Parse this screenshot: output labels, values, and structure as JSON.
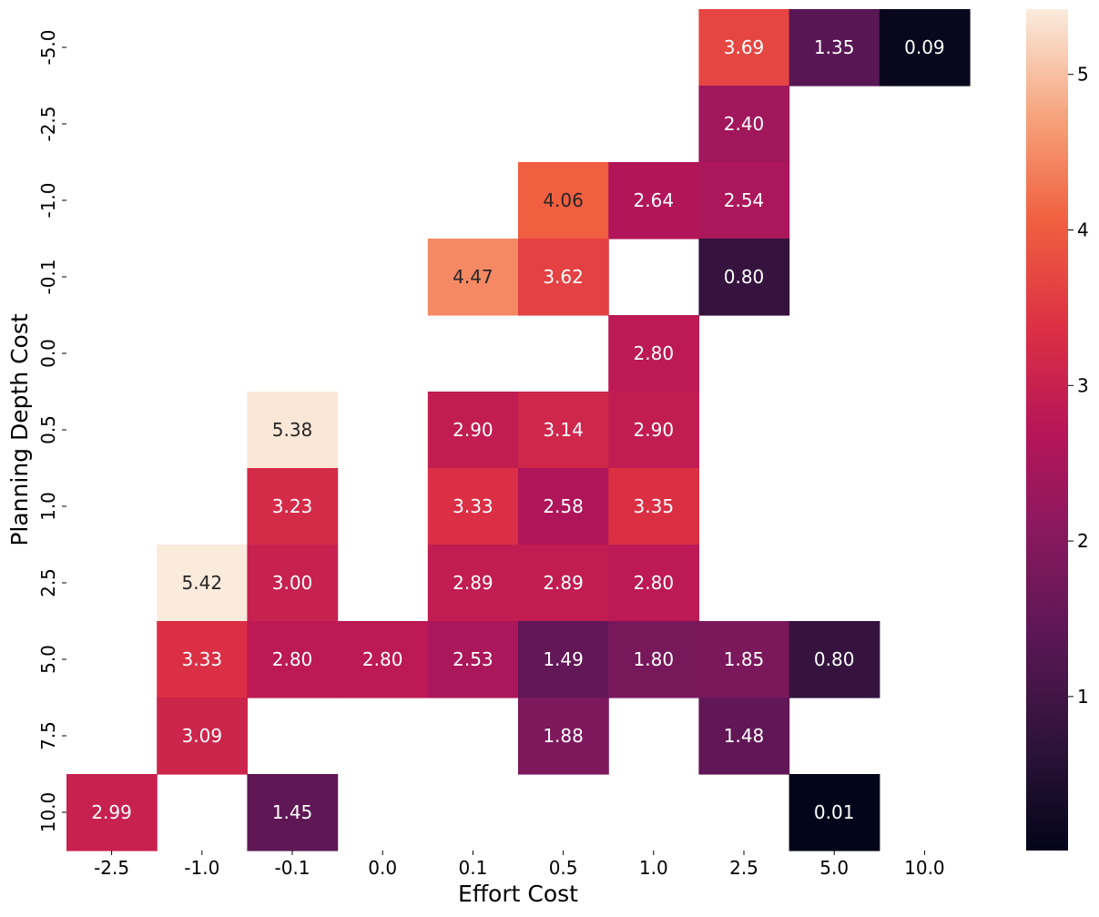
{
  "chart_data": {
    "type": "heatmap",
    "title": "",
    "xlabel": "Effort Cost",
    "ylabel": "Planning Depth Cost",
    "x_categories": [
      "-2.5",
      "-1.0",
      "-0.1",
      "0.0",
      "0.1",
      "0.5",
      "1.0",
      "2.5",
      "5.0",
      "10.0"
    ],
    "y_categories": [
      "-5.0",
      "-2.5",
      "-1.0",
      "-0.1",
      "0.0",
      "0.5",
      "1.0",
      "2.5",
      "5.0",
      "7.5",
      "10.0"
    ],
    "values": [
      [
        null,
        null,
        null,
        null,
        null,
        null,
        null,
        3.69,
        1.35,
        0.09
      ],
      [
        null,
        null,
        null,
        null,
        null,
        null,
        null,
        2.4,
        null,
        null
      ],
      [
        null,
        null,
        null,
        null,
        null,
        4.06,
        2.64,
        2.54,
        null,
        null
      ],
      [
        null,
        null,
        null,
        null,
        4.47,
        3.62,
        null,
        0.8,
        null,
        null
      ],
      [
        null,
        null,
        null,
        null,
        null,
        null,
        2.8,
        null,
        null,
        null
      ],
      [
        null,
        null,
        5.38,
        null,
        2.9,
        3.14,
        2.9,
        null,
        null,
        null
      ],
      [
        null,
        null,
        3.23,
        null,
        3.33,
        2.58,
        3.35,
        null,
        null,
        null
      ],
      [
        null,
        5.42,
        3.0,
        null,
        2.89,
        2.89,
        2.8,
        null,
        null,
        null
      ],
      [
        null,
        3.33,
        2.8,
        2.8,
        2.53,
        1.49,
        1.8,
        1.85,
        0.8,
        null
      ],
      [
        null,
        3.09,
        null,
        null,
        null,
        1.88,
        null,
        1.48,
        null,
        null
      ],
      [
        2.99,
        null,
        1.45,
        null,
        null,
        null,
        null,
        null,
        0.01,
        null
      ]
    ],
    "cell_labels": [
      [
        null,
        null,
        null,
        null,
        null,
        null,
        null,
        "3.69",
        "1.35",
        "0.09"
      ],
      [
        null,
        null,
        null,
        null,
        null,
        null,
        null,
        "2.40",
        null,
        null
      ],
      [
        null,
        null,
        null,
        null,
        null,
        "4.06",
        "2.64",
        "2.54",
        null,
        null
      ],
      [
        null,
        null,
        null,
        null,
        "4.47",
        "3.62",
        null,
        "0.80",
        null,
        null
      ],
      [
        null,
        null,
        null,
        null,
        null,
        null,
        "2.80",
        null,
        null,
        null
      ],
      [
        null,
        null,
        "5.38",
        null,
        "2.90",
        "3.14",
        "2.90",
        null,
        null,
        null
      ],
      [
        null,
        null,
        "3.23",
        null,
        "3.33",
        "2.58",
        "3.35",
        null,
        null,
        null
      ],
      [
        null,
        "5.42",
        "3.00",
        null,
        "2.89",
        "2.89",
        "2.80",
        null,
        null,
        null
      ],
      [
        null,
        "3.33",
        "2.80",
        "2.80",
        "2.53",
        "1.49",
        "1.80",
        "1.85",
        "0.80",
        null
      ],
      [
        null,
        "3.09",
        null,
        null,
        null,
        "1.88",
        null,
        "1.48",
        null,
        null
      ],
      [
        "2.99",
        null,
        "1.45",
        null,
        null,
        null,
        null,
        null,
        "0.01",
        null
      ]
    ],
    "colormap": "rocket",
    "color_range": [
      0.01,
      5.42
    ],
    "colorbar": {
      "ticks": [
        1,
        2,
        3,
        4,
        5
      ],
      "tick_labels": [
        "1",
        "2",
        "3",
        "4",
        "5"
      ],
      "placement": "right"
    },
    "missing_cells": "blank",
    "grid": false
  }
}
